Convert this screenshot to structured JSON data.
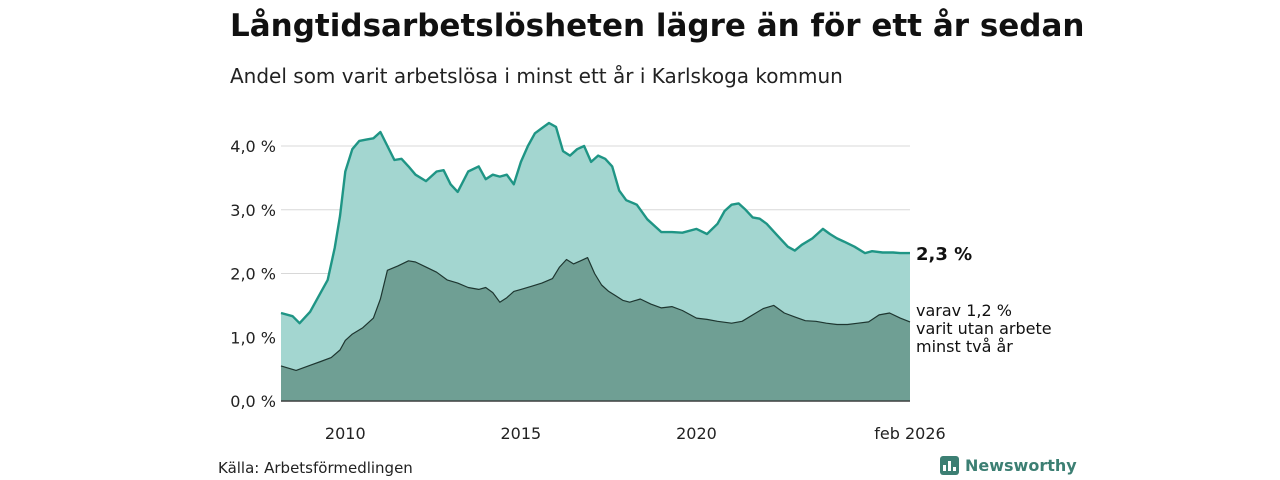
{
  "header": {
    "title": "Långtidsarbetslösheten lägre än för ett år sedan",
    "subtitle": "Andel som varit arbetslösa i minst ett år i Karlskoga kommun"
  },
  "footer": {
    "source": "Källa: Arbetsförmedlingen",
    "brand": "Newsworthy",
    "brand_icon": "bar-chart-icon"
  },
  "colors": {
    "upper_fill": "#a3d6d0",
    "upper_line": "#1f9585",
    "lower_fill": "#6f9f94",
    "lower_line": "#1e3630",
    "grid": "#d8d8d8"
  },
  "chart_data": {
    "type": "area",
    "x_unit": "year",
    "xlim": [
      2008.17,
      2026.08
    ],
    "ylim": [
      0,
      4.0
    ],
    "ytick_labels": [
      "0,0 %",
      "1,0 %",
      "2,0 %",
      "3,0 %",
      "4,0 %"
    ],
    "ytick_values": [
      0,
      1,
      2,
      3,
      4
    ],
    "xtick_labels": [
      "2010",
      "2015",
      "2020",
      "feb 2026"
    ],
    "xtick_values": [
      2010,
      2015,
      2020,
      2026.08
    ],
    "grid": true,
    "series": [
      {
        "name": "",
        "end_label": "2,3 %",
        "x": [
          2008.17,
          2008.5,
          2008.7,
          2009.0,
          2009.3,
          2009.5,
          2009.7,
          2009.85,
          2010.0,
          2010.2,
          2010.4,
          2010.6,
          2010.8,
          2011.0,
          2011.4,
          2011.6,
          2011.8,
          2012.0,
          2012.3,
          2012.6,
          2012.8,
          2013.0,
          2013.2,
          2013.5,
          2013.8,
          2014.0,
          2014.2,
          2014.4,
          2014.6,
          2014.8,
          2015.0,
          2015.2,
          2015.4,
          2015.6,
          2015.8,
          2016.0,
          2016.2,
          2016.4,
          2016.6,
          2016.8,
          2017.0,
          2017.2,
          2017.4,
          2017.6,
          2017.8,
          2018.0,
          2018.3,
          2018.6,
          2019.0,
          2019.3,
          2019.6,
          2020.0,
          2020.3,
          2020.6,
          2020.8,
          2021.0,
          2021.2,
          2021.4,
          2021.6,
          2021.8,
          2022.0,
          2022.3,
          2022.6,
          2022.8,
          2023.0,
          2023.3,
          2023.6,
          2023.8,
          2024.0,
          2024.2,
          2024.5,
          2024.8,
          2025.0,
          2025.3,
          2025.6,
          2025.8,
          2026.08
        ],
        "values": [
          1.38,
          1.33,
          1.22,
          1.4,
          1.7,
          1.9,
          2.4,
          2.9,
          3.6,
          3.95,
          4.08,
          4.1,
          4.12,
          4.22,
          3.78,
          3.8,
          3.68,
          3.55,
          3.45,
          3.6,
          3.62,
          3.4,
          3.28,
          3.6,
          3.68,
          3.48,
          3.55,
          3.52,
          3.55,
          3.4,
          3.75,
          4.0,
          4.2,
          4.28,
          4.36,
          4.3,
          3.92,
          3.85,
          3.95,
          4.0,
          3.75,
          3.85,
          3.8,
          3.68,
          3.3,
          3.15,
          3.08,
          2.85,
          2.65,
          2.65,
          2.64,
          2.7,
          2.62,
          2.78,
          2.98,
          3.08,
          3.1,
          3.0,
          2.88,
          2.86,
          2.78,
          2.6,
          2.42,
          2.36,
          2.45,
          2.55,
          2.7,
          2.62,
          2.55,
          2.5,
          2.42,
          2.32,
          2.35,
          2.33,
          2.33,
          2.32,
          2.32
        ]
      },
      {
        "name": "",
        "end_label": [
          "varav 1,2 %",
          "varit utan arbete",
          "minst två år"
        ],
        "x": [
          2008.17,
          2008.6,
          2009.0,
          2009.3,
          2009.6,
          2009.85,
          2010.0,
          2010.2,
          2010.5,
          2010.8,
          2011.0,
          2011.2,
          2011.5,
          2011.8,
          2012.0,
          2012.3,
          2012.6,
          2012.9,
          2013.2,
          2013.5,
          2013.8,
          2014.0,
          2014.2,
          2014.4,
          2014.6,
          2014.8,
          2015.0,
          2015.3,
          2015.6,
          2015.9,
          2016.1,
          2016.3,
          2016.5,
          2016.7,
          2016.9,
          2017.1,
          2017.3,
          2017.5,
          2017.7,
          2017.9,
          2018.1,
          2018.4,
          2018.7,
          2019.0,
          2019.3,
          2019.6,
          2020.0,
          2020.3,
          2020.6,
          2021.0,
          2021.3,
          2021.6,
          2021.9,
          2022.2,
          2022.5,
          2022.8,
          2023.1,
          2023.4,
          2023.7,
          2024.0,
          2024.3,
          2024.6,
          2024.9,
          2025.2,
          2025.5,
          2025.8,
          2026.08
        ],
        "values": [
          0.55,
          0.48,
          0.56,
          0.62,
          0.68,
          0.8,
          0.95,
          1.05,
          1.15,
          1.3,
          1.6,
          2.05,
          2.12,
          2.2,
          2.18,
          2.1,
          2.02,
          1.9,
          1.85,
          1.78,
          1.75,
          1.78,
          1.7,
          1.55,
          1.62,
          1.72,
          1.75,
          1.8,
          1.85,
          1.92,
          2.1,
          2.22,
          2.15,
          2.2,
          2.25,
          2.0,
          1.82,
          1.72,
          1.65,
          1.58,
          1.55,
          1.6,
          1.52,
          1.46,
          1.48,
          1.42,
          1.3,
          1.28,
          1.25,
          1.22,
          1.25,
          1.35,
          1.45,
          1.5,
          1.38,
          1.32,
          1.26,
          1.25,
          1.22,
          1.2,
          1.2,
          1.22,
          1.24,
          1.35,
          1.38,
          1.3,
          1.24
        ]
      }
    ]
  }
}
